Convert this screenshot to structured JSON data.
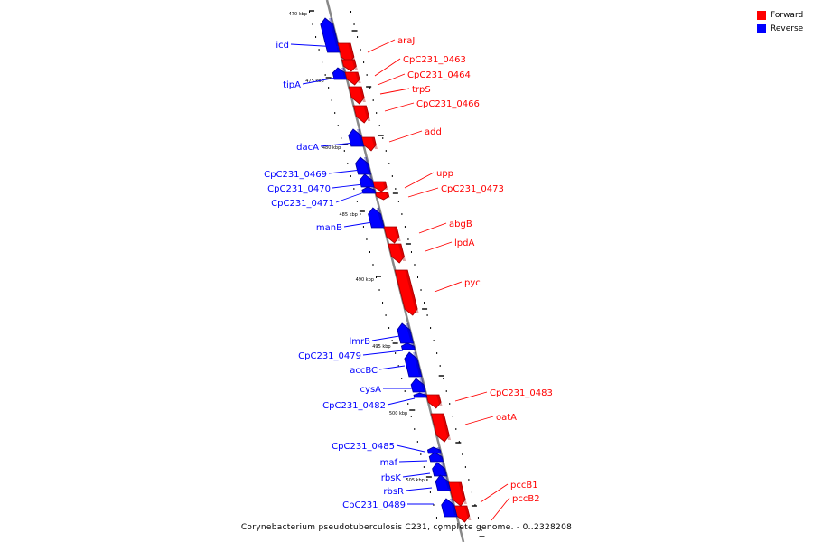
{
  "legend": [
    {
      "label": "Forward",
      "color": "#ff0000"
    },
    {
      "label": "Reverse",
      "color": "#0000ff"
    }
  ],
  "caption": "Corynebacterium pseudotuberculosis C231, complete genome. - 0..2328208",
  "colors": {
    "forward": "#ff0000",
    "reverse": "#0000ff",
    "backbone": "#888888"
  },
  "ticks": [
    "470 kbp",
    "475 kbp",
    "480 kbp",
    "485 kbp",
    "490 kbp",
    "495 kbp",
    "500 kbp",
    "505 kbp"
  ],
  "genes": [
    {
      "name": "icd",
      "strand": "reverse"
    },
    {
      "name": "araJ",
      "strand": "forward"
    },
    {
      "name": "CpC231_0463",
      "strand": "forward"
    },
    {
      "name": "tipA",
      "strand": "reverse"
    },
    {
      "name": "CpC231_0464",
      "strand": "forward"
    },
    {
      "name": "trpS",
      "strand": "forward"
    },
    {
      "name": "CpC231_0466",
      "strand": "forward"
    },
    {
      "name": "add",
      "strand": "forward"
    },
    {
      "name": "dacA",
      "strand": "reverse"
    },
    {
      "name": "CpC231_0469",
      "strand": "reverse"
    },
    {
      "name": "upp",
      "strand": "forward"
    },
    {
      "name": "CpC231_0470",
      "strand": "reverse"
    },
    {
      "name": "CpC231_0473",
      "strand": "forward"
    },
    {
      "name": "CpC231_0471",
      "strand": "reverse"
    },
    {
      "name": "manB",
      "strand": "reverse"
    },
    {
      "name": "abgB",
      "strand": "forward"
    },
    {
      "name": "lpdA",
      "strand": "forward"
    },
    {
      "name": "pyc",
      "strand": "forward"
    },
    {
      "name": "lmrB",
      "strand": "reverse"
    },
    {
      "name": "CpC231_0479",
      "strand": "reverse"
    },
    {
      "name": "accBC",
      "strand": "reverse"
    },
    {
      "name": "cysA",
      "strand": "reverse"
    },
    {
      "name": "CpC231_0483",
      "strand": "forward"
    },
    {
      "name": "CpC231_0482",
      "strand": "reverse"
    },
    {
      "name": "oatA",
      "strand": "forward"
    },
    {
      "name": "CpC231_0485",
      "strand": "reverse"
    },
    {
      "name": "maf",
      "strand": "reverse"
    },
    {
      "name": "rbsK",
      "strand": "reverse"
    },
    {
      "name": "pccB1",
      "strand": "forward"
    },
    {
      "name": "rbsR",
      "strand": "reverse"
    },
    {
      "name": "pccB2",
      "strand": "forward"
    },
    {
      "name": "CpC231_0489",
      "strand": "reverse"
    }
  ]
}
